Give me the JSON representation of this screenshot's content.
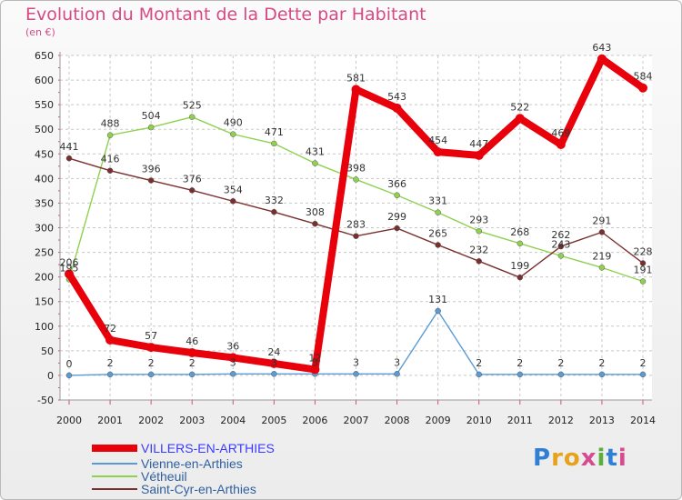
{
  "title": "Evolution du Montant de la Dette par Habitant",
  "unit_label": "(en €)",
  "logo_text": "Proxiti",
  "colors": {
    "title": "#d54a84",
    "grid": "#c8c8c8"
  },
  "chart_data": {
    "type": "line",
    "title": "Evolution du Montant de la Dette par Habitant",
    "ylabel": "(en €)",
    "xlabel": "",
    "x": [
      "2000",
      "2001",
      "2002",
      "2003",
      "2004",
      "2005",
      "2006",
      "2007",
      "2008",
      "2009",
      "2010",
      "2011",
      "2012",
      "2013",
      "2014"
    ],
    "ylim": [
      -50,
      650
    ],
    "yticks": [
      -50,
      0,
      50,
      100,
      150,
      200,
      250,
      300,
      350,
      400,
      450,
      500,
      550,
      600,
      650
    ],
    "grid": true,
    "legend_position": "bottom-left",
    "series": [
      {
        "name": "VILLERS-EN-ARTHIES",
        "color": "#e8000b",
        "values": [
          206,
          72,
          57,
          46,
          36,
          24,
          12,
          581,
          543,
          454,
          447,
          522,
          469,
          643,
          584
        ],
        "labels": [
          "206",
          "72",
          "57",
          "46",
          "36",
          "24",
          "12",
          "581",
          "543",
          "454",
          "447",
          "522",
          "469",
          "643",
          "584"
        ]
      },
      {
        "name": "Vienne-en-Arthies",
        "color": "#5b9bd5",
        "values": [
          0,
          2,
          2,
          2,
          3,
          3,
          3,
          3,
          3,
          131,
          2,
          2,
          2,
          2,
          2
        ],
        "labels": [
          "0",
          "2",
          "2",
          "2",
          "3",
          "3",
          "3",
          "3",
          "3",
          "131",
          "2",
          "2",
          "2",
          "2",
          "2"
        ]
      },
      {
        "name": "Vétheuil",
        "color": "#8fd14f",
        "values": [
          195,
          488,
          504,
          525,
          490,
          471,
          431,
          398,
          366,
          331,
          293,
          268,
          243,
          219,
          191
        ],
        "labels": [
          "195",
          "488",
          "504",
          "525",
          "490",
          "471",
          "431",
          "398",
          "366",
          "331",
          "293",
          "268",
          "243",
          "219",
          "191"
        ]
      },
      {
        "name": "Saint-Cyr-en-Arthies",
        "color": "#7a2f2f",
        "values": [
          441,
          416,
          396,
          376,
          354,
          332,
          308,
          283,
          299,
          265,
          232,
          199,
          262,
          291,
          228
        ],
        "labels": [
          "441",
          "416",
          "396",
          "376",
          "354",
          "332",
          "308",
          "283",
          "299",
          "265",
          "232",
          "199",
          "262",
          "291",
          "228"
        ]
      }
    ]
  }
}
